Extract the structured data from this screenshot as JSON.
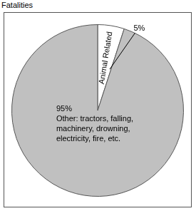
{
  "chart_data": {
    "type": "pie",
    "title": "Fatalities",
    "categories": [
      "Animal Related",
      "Other: tractors, falling, machinery, drowning, electricity, fire, etc."
    ],
    "values": [
      5,
      95
    ],
    "value_labels": [
      "5%",
      "95%"
    ],
    "colors": [
      "#ffffff",
      "#c0c0c0"
    ],
    "data_labels": true
  }
}
